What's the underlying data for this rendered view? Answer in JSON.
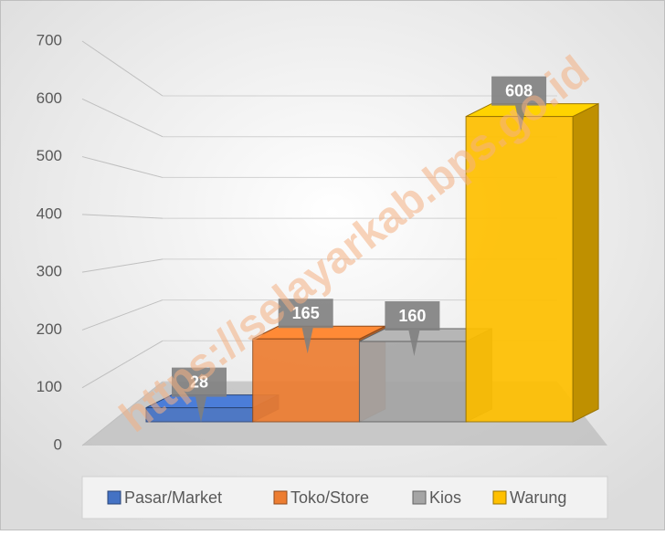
{
  "chart_data": {
    "type": "bar3d",
    "watermark": "https://selayarkab.bps.go.id",
    "series": [
      {
        "name": "Pasar/Market",
        "color": "#4472c4",
        "values": [
          28
        ]
      },
      {
        "name": "Toko/Store",
        "color": "#ed7d31",
        "values": [
          165
        ]
      },
      {
        "name": "Kios",
        "color": "#a5a5a5",
        "values": [
          160
        ]
      },
      {
        "name": "Warung",
        "color": "#ffc000",
        "values": [
          608
        ]
      }
    ],
    "ylim": [
      0,
      700
    ],
    "yticks": [
      0,
      100,
      200,
      300,
      400,
      500,
      600,
      700
    ],
    "grid": true,
    "legend": "bottom"
  }
}
